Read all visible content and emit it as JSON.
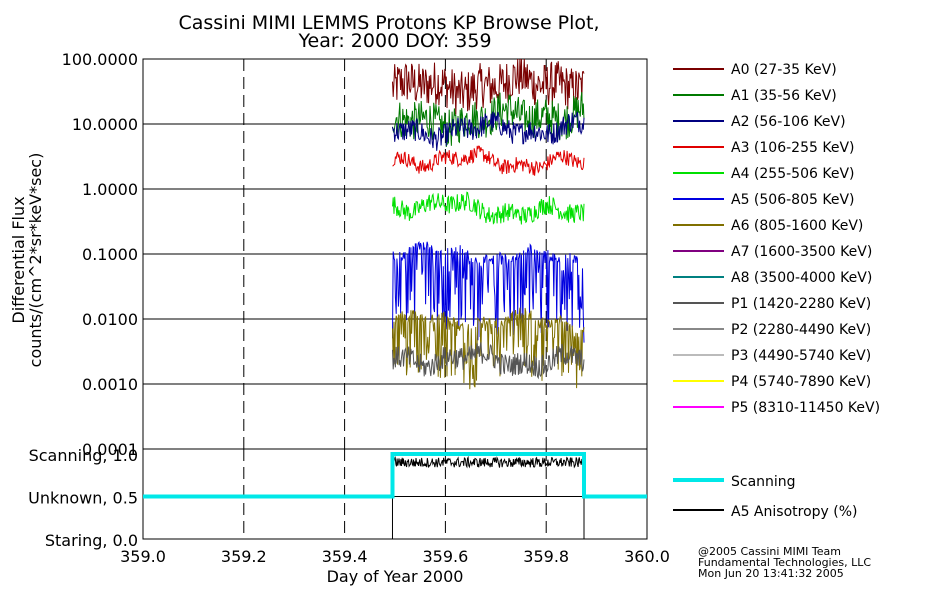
{
  "chart_data": {
    "type": "line",
    "title": "Cassini MIMI LEMMS Protons KP Browse Plot,",
    "subtitle": "Year: 2000 DOY: 359",
    "ylabel_line1": "Differential Flux",
    "ylabel_line2": "counts/(cm^2*sr*keV*sec)",
    "xlabel": "Day of Year 2000",
    "x_range": [
      359.0,
      360.0
    ],
    "x_ticks": [
      "359.0",
      "359.2",
      "359.4",
      "359.6",
      "359.8",
      "360.0"
    ],
    "y_scale": "log",
    "y_range": [
      0.0001,
      100
    ],
    "y_ticks": [
      "100.0000",
      "10.0000",
      "1.0000",
      "0.1000",
      "0.0100",
      "0.0010",
      "0.0001"
    ],
    "data_window": [
      359.495,
      359.875
    ],
    "series": [
      {
        "name": "A0 (27-35 KeV)",
        "color": "#7a0000",
        "level": 35,
        "level_end": 45,
        "spread": 0.35
      },
      {
        "name": "A1 (35-56 KeV)",
        "color": "#007a00",
        "level": 10,
        "level_end": 15,
        "spread": 0.3
      },
      {
        "name": "A2 (56-106 KeV)",
        "color": "#000080",
        "level": 7.5,
        "level_end": 9,
        "spread": 0.18
      },
      {
        "name": "A3 (106-255 KeV)",
        "color": "#e00000",
        "level": 3.0,
        "level_end": 2.4,
        "spread": 0.12
      },
      {
        "name": "A4 (255-506 KeV)",
        "color": "#00e000",
        "level": 0.6,
        "level_end": 0.4,
        "spread": 0.15
      },
      {
        "name": "A5 (506-805 KeV)",
        "color": "#0000e0",
        "level": 0.1,
        "level_end": 0.07,
        "spread": 0.8
      },
      {
        "name": "A6 (805-1600 KeV)",
        "color": "#807000",
        "level": 0.008,
        "level_end": 0.008,
        "spread": 0.6
      },
      {
        "name": "A7 (1600-3500 KeV)",
        "color": "#800080",
        "level": null
      },
      {
        "name": "A8 (3500-4000 KeV)",
        "color": "#008080",
        "level": null
      },
      {
        "name": "P1 (1420-2280 KeV)",
        "color": "#555555",
        "level": 0.0025,
        "level_end": 0.0022,
        "spread": 0.18
      },
      {
        "name": "P2 (2280-4490 KeV)",
        "color": "#888888",
        "level": null
      },
      {
        "name": "P3 (4490-5740 KeV)",
        "color": "#bbbbbb",
        "level": null
      },
      {
        "name": "P4 (5740-7890 KeV)",
        "color": "#ffff00",
        "level": null
      },
      {
        "name": "P5 (8310-11450 KeV)",
        "color": "#ff00ff",
        "level": null
      }
    ],
    "mode_panel": {
      "y_ticks": [
        "Scanning, 1.0",
        "Unknown, 0.5",
        "Staring, 0.0"
      ],
      "scanning": {
        "name": "Scanning",
        "color": "#00e8e8",
        "steps": [
          [
            359.0,
            0.5
          ],
          [
            359.495,
            0.5
          ],
          [
            359.495,
            1.0
          ],
          [
            359.875,
            1.0
          ],
          [
            359.875,
            0.5
          ],
          [
            360.0,
            0.5
          ]
        ]
      },
      "anisotropy": {
        "name": "A5 Anisotropy (%)",
        "color": "#000000",
        "level": 0.9
      }
    },
    "credit": [
      "@2005 Cassini MIMI Team",
      "Fundamental Technologies, LLC",
      "Mon Jun 20 13:41:32 2005"
    ]
  }
}
